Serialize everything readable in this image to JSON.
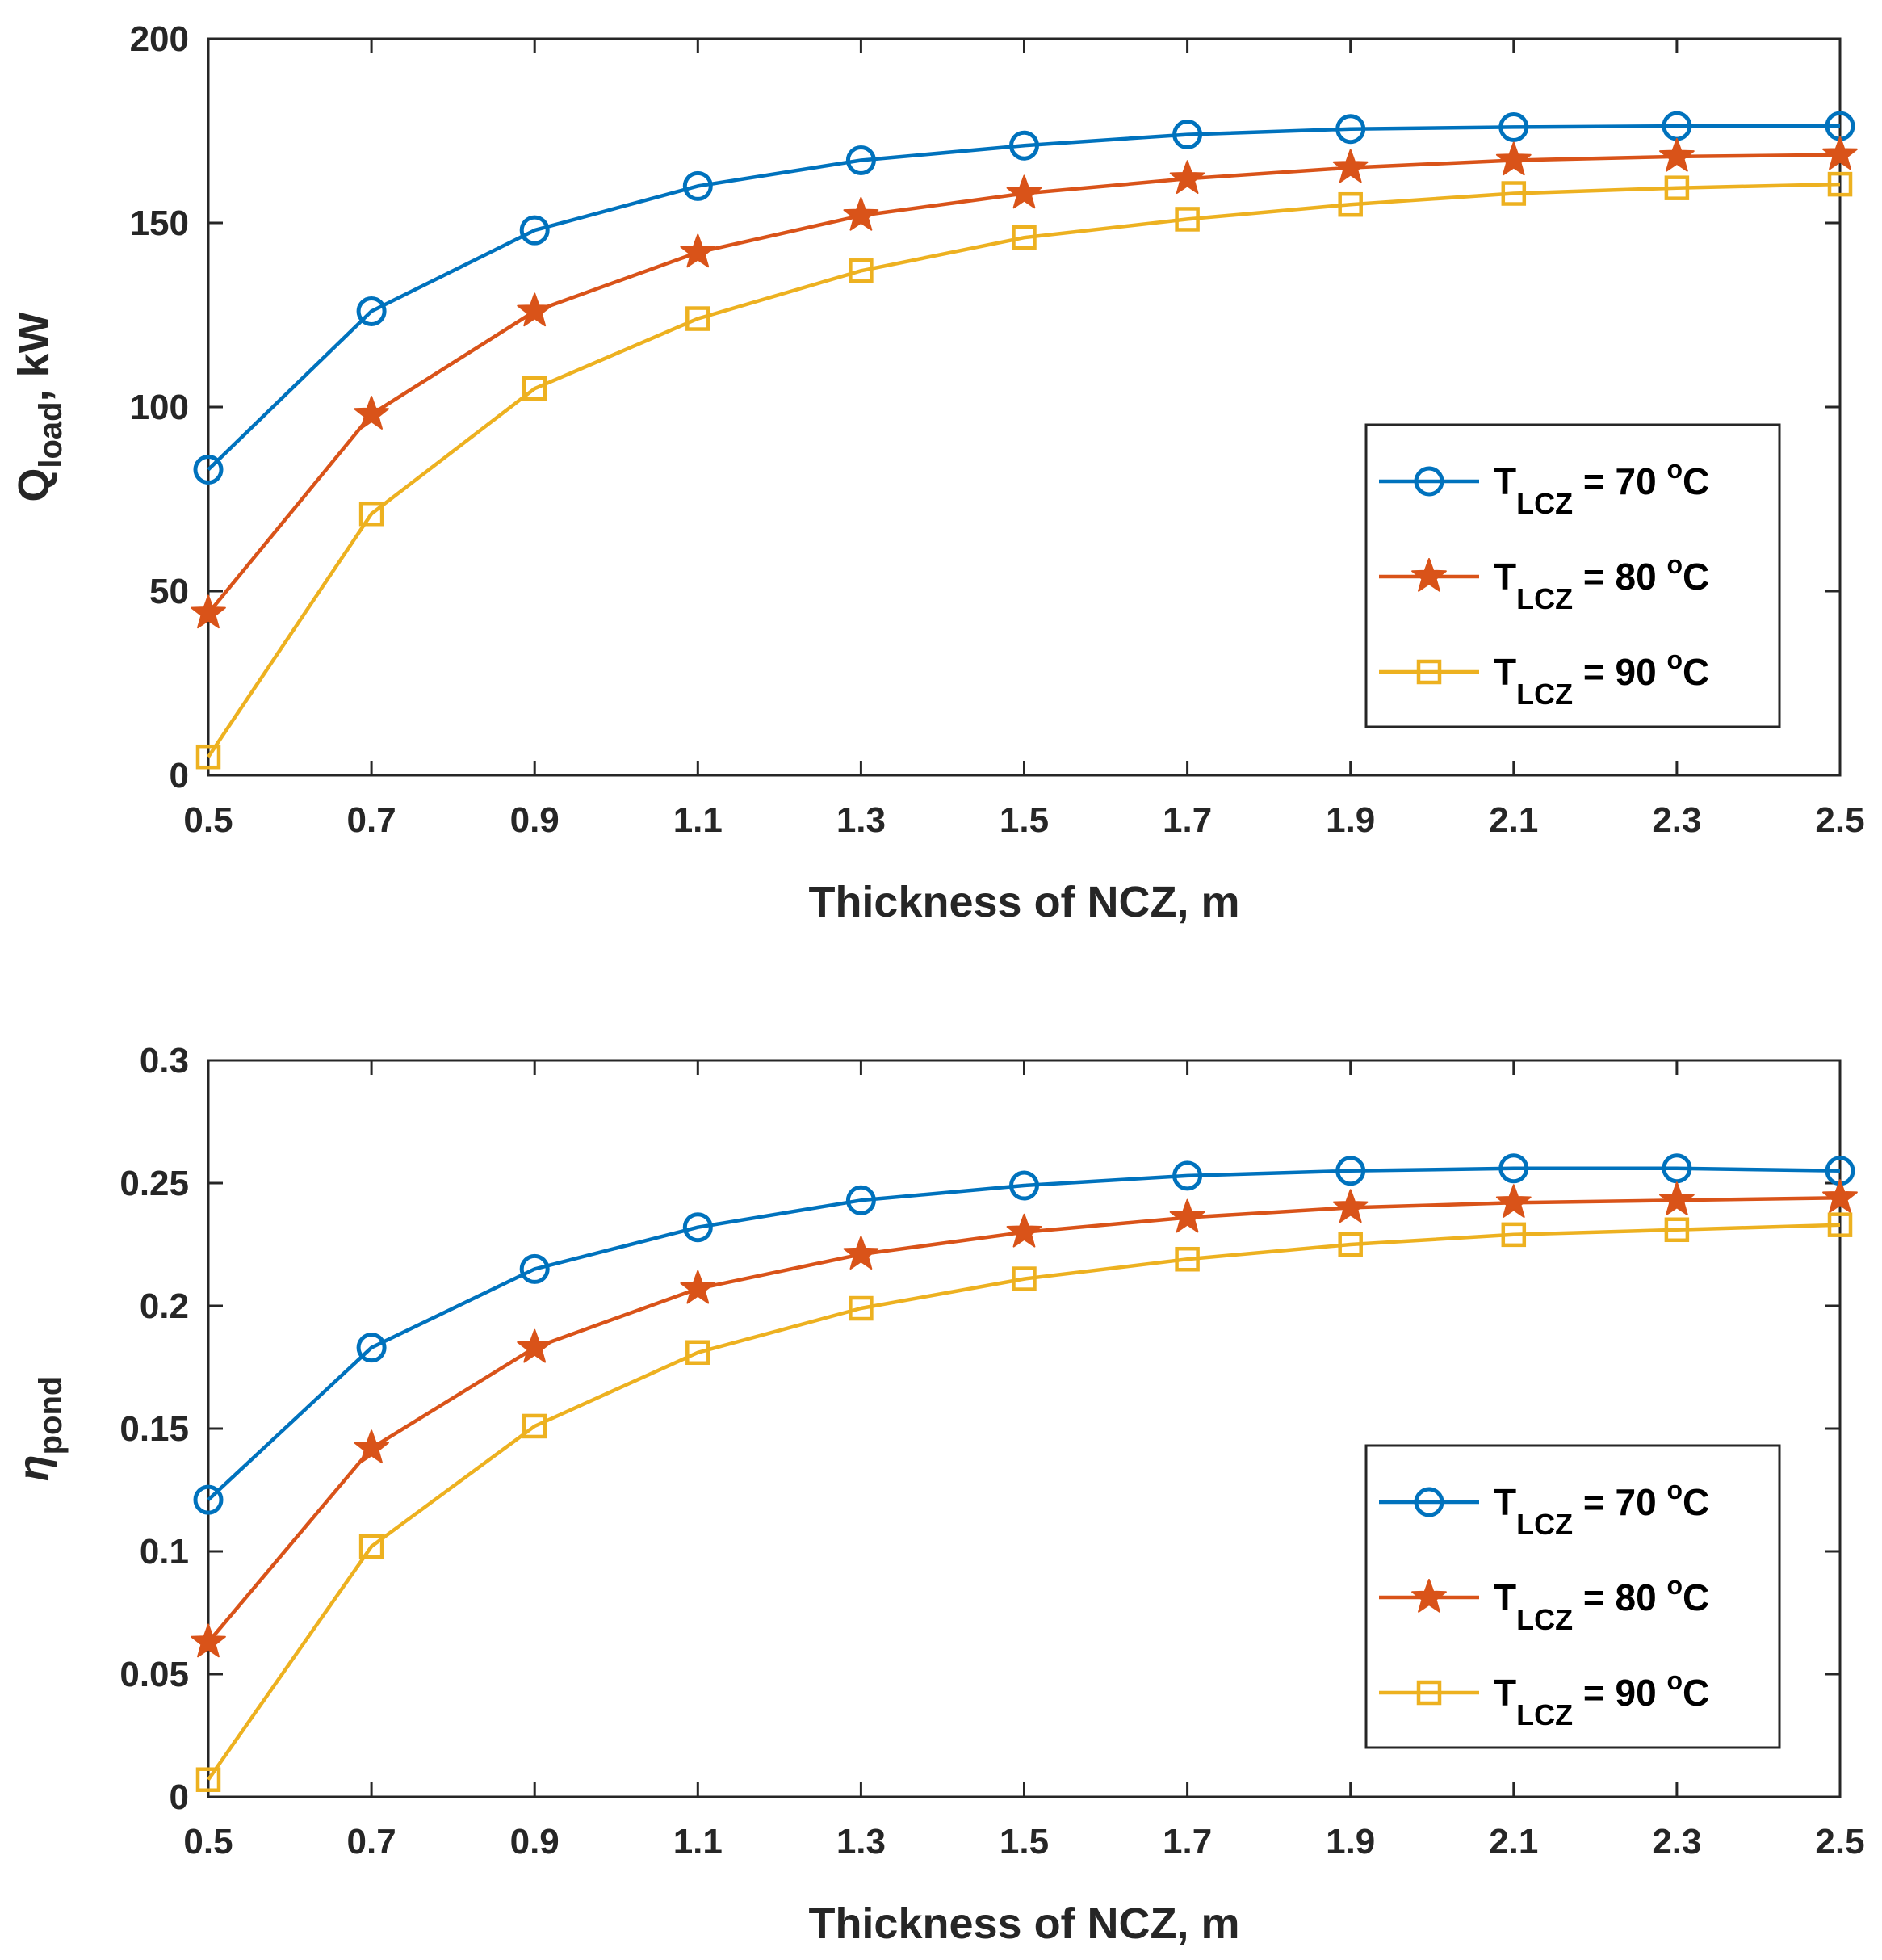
{
  "chart_data": [
    {
      "type": "line",
      "x": [
        0.5,
        0.7,
        0.9,
        1.1,
        1.3,
        1.5,
        1.7,
        1.9,
        2.1,
        2.3,
        2.5
      ],
      "xlabel": "Thickness of NCZ, m",
      "ylabel": {
        "main": "Q",
        "sub": "load",
        "suffix": ", kW"
      },
      "xlim": [
        0.5,
        2.5
      ],
      "ylim": [
        0,
        200
      ],
      "xticks": [
        "0.5",
        "0.7",
        "0.9",
        "1.1",
        "1.3",
        "1.5",
        "1.7",
        "1.9",
        "2.1",
        "2.3",
        "2.5"
      ],
      "yticks": [
        0,
        50,
        100,
        150,
        200
      ],
      "ytick_labels": [
        "0",
        "50",
        "100",
        "150",
        "200"
      ],
      "legend_position": "right",
      "series": [
        {
          "name": "T_LCZ = 70 °C",
          "legend": {
            "main": "T",
            "sub": "LCZ",
            "suffix": " = 70 ",
            "deg": "o",
            "unit": "C"
          },
          "marker": "circle",
          "color": "#0072BD",
          "values": [
            83,
            126,
            148,
            160,
            167,
            171,
            174,
            175.5,
            176,
            176.3,
            176.3
          ]
        },
        {
          "name": "T_LCZ = 80 °C",
          "legend": {
            "main": "T",
            "sub": "LCZ",
            "suffix": " = 80 ",
            "deg": "o",
            "unit": "C"
          },
          "marker": "star",
          "color": "#D95319",
          "values": [
            44,
            98,
            126,
            142,
            152,
            158,
            162,
            165,
            167,
            168,
            168.5
          ]
        },
        {
          "name": "T_LCZ = 90 °C",
          "legend": {
            "main": "T",
            "sub": "LCZ",
            "suffix": " = 90 ",
            "deg": "o",
            "unit": "C"
          },
          "marker": "square",
          "color": "#EDB120",
          "values": [
            5,
            71,
            105,
            124,
            137,
            146,
            151,
            155,
            158,
            159.5,
            160.5
          ]
        }
      ]
    },
    {
      "type": "line",
      "x": [
        0.5,
        0.7,
        0.9,
        1.1,
        1.3,
        1.5,
        1.7,
        1.9,
        2.1,
        2.3,
        2.5
      ],
      "xlabel": "Thickness of NCZ, m",
      "ylabel": {
        "main": "η",
        "sub": "pond",
        "suffix": ""
      },
      "xlim": [
        0.5,
        2.5
      ],
      "ylim": [
        0,
        0.3
      ],
      "xticks": [
        "0.5",
        "0.7",
        "0.9",
        "1.1",
        "1.3",
        "1.5",
        "1.7",
        "1.9",
        "2.1",
        "2.3",
        "2.5"
      ],
      "yticks": [
        0,
        0.05,
        0.1,
        0.15,
        0.2,
        0.25,
        0.3
      ],
      "ytick_labels": [
        "0",
        "0.05",
        "0.1",
        "0.15",
        "0.2",
        "0.25",
        "0.3"
      ],
      "legend_position": "right",
      "series": [
        {
          "name": "T_LCZ = 70 °C",
          "legend": {
            "main": "T",
            "sub": "LCZ",
            "suffix": " = 70 ",
            "deg": "o",
            "unit": "C"
          },
          "marker": "circle",
          "color": "#0072BD",
          "values": [
            0.121,
            0.183,
            0.215,
            0.232,
            0.243,
            0.249,
            0.253,
            0.255,
            0.256,
            0.256,
            0.255
          ]
        },
        {
          "name": "T_LCZ = 80 °C",
          "legend": {
            "main": "T",
            "sub": "LCZ",
            "suffix": " = 80 ",
            "deg": "o",
            "unit": "C"
          },
          "marker": "star",
          "color": "#D95319",
          "values": [
            0.063,
            0.142,
            0.183,
            0.207,
            0.221,
            0.23,
            0.236,
            0.24,
            0.242,
            0.243,
            0.244
          ]
        },
        {
          "name": "T_LCZ = 90 °C",
          "legend": {
            "main": "T",
            "sub": "LCZ",
            "suffix": " = 90 ",
            "deg": "o",
            "unit": "C"
          },
          "marker": "square",
          "color": "#EDB120",
          "values": [
            0.007,
            0.102,
            0.151,
            0.181,
            0.199,
            0.211,
            0.219,
            0.225,
            0.229,
            0.231,
            0.233
          ]
        }
      ]
    }
  ]
}
